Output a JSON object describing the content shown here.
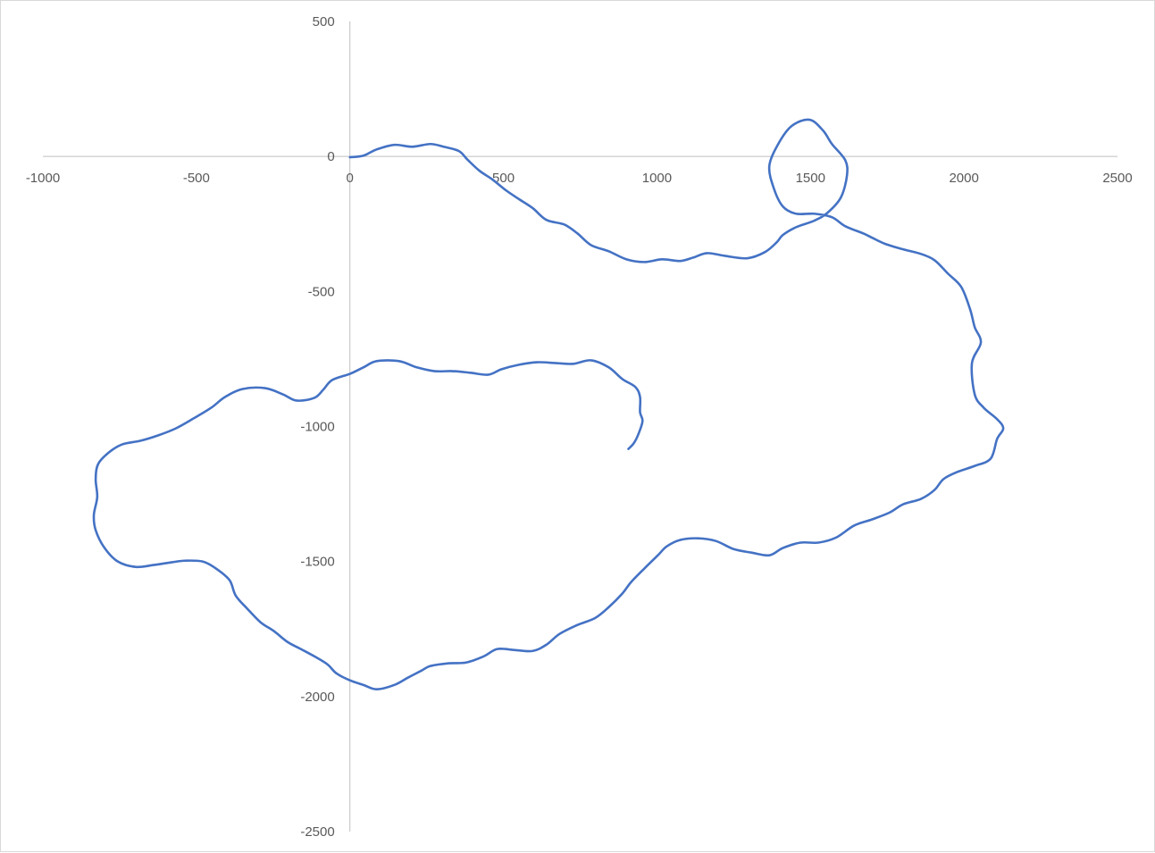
{
  "chart_data": {
    "type": "scatter",
    "mode": "smooth-line",
    "title": "",
    "xlabel": "",
    "ylabel": "",
    "xlim": [
      -1000,
      2500
    ],
    "ylim": [
      -2500,
      500
    ],
    "xticks": [
      "-1000",
      "-500",
      "0",
      "500",
      "1000",
      "1500",
      "2000",
      "2500"
    ],
    "yticks": [
      "500",
      "0",
      "-500",
      "-1000",
      "-1500",
      "-2000",
      "-2500"
    ],
    "grid": false,
    "legend": "none",
    "line_color": "#4472C4",
    "axis_color": "#bfbfbf",
    "series": [
      {
        "x": [
          0,
          44,
          87,
          145,
          203,
          262,
          305,
          355,
          384,
          422,
          465,
          509,
          552,
          596,
          640,
          698,
          741,
          785,
          843,
          901,
          959,
          1017,
          1076,
          1119,
          1163,
          1221,
          1294,
          1352,
          1390,
          1410,
          1453,
          1512,
          1555,
          1599,
          1619,
          1613,
          1570,
          1541,
          1497,
          1439,
          1395,
          1366,
          1381,
          1410,
          1453,
          1512,
          1570,
          1613,
          1672,
          1701,
          1744,
          1802,
          1860,
          1904,
          1948,
          1991,
          2020,
          2035,
          2055,
          2026,
          2035,
          2064,
          2108,
          2128,
          2108,
          2087,
          2035,
          1977,
          1933,
          1904,
          1860,
          1802,
          1759,
          1701,
          1642,
          1584,
          1526,
          1468,
          1410,
          1366,
          1308,
          1250,
          1192,
          1134,
          1076,
          1032,
          1003,
          959,
          916,
          887,
          843,
          799,
          741,
          683,
          640,
          596,
          538,
          480,
          436,
          378,
          320,
          262,
          233,
          189,
          145,
          87,
          44,
          0,
          -44,
          -73,
          -116,
          -160,
          -203,
          -247,
          -291,
          -334,
          -372,
          -392,
          -436,
          -480,
          -538,
          -581,
          -640,
          -698,
          -756,
          -799,
          -828,
          -834,
          -823,
          -828,
          -820,
          -785,
          -741,
          -683,
          -625,
          -567,
          -509,
          -451,
          -407,
          -349,
          -276,
          -218,
          -174,
          -116,
          -87,
          -58,
          0,
          44,
          87,
          160,
          218,
          276,
          334,
          392,
          451,
          494,
          552,
          610,
          669,
          727,
          785,
          843,
          887,
          930,
          945,
          945,
          953,
          939,
          924,
          907
        ],
        "y": [
          -3,
          3,
          26,
          43,
          36,
          46,
          36,
          20,
          -13,
          -53,
          -86,
          -126,
          -159,
          -192,
          -235,
          -252,
          -285,
          -328,
          -351,
          -381,
          -391,
          -381,
          -387,
          -374,
          -358,
          -368,
          -377,
          -354,
          -318,
          -291,
          -262,
          -238,
          -209,
          -152,
          -70,
          -13,
          46,
          96,
          136,
          113,
          46,
          -36,
          -119,
          -185,
          -212,
          -212,
          -225,
          -258,
          -285,
          -301,
          -324,
          -344,
          -361,
          -384,
          -434,
          -483,
          -566,
          -632,
          -689,
          -765,
          -881,
          -930,
          -973,
          -1007,
          -1046,
          -1119,
          -1146,
          -1169,
          -1195,
          -1235,
          -1268,
          -1288,
          -1318,
          -1344,
          -1367,
          -1411,
          -1430,
          -1430,
          -1450,
          -1477,
          -1467,
          -1454,
          -1424,
          -1414,
          -1420,
          -1444,
          -1477,
          -1526,
          -1576,
          -1619,
          -1669,
          -1709,
          -1735,
          -1768,
          -1808,
          -1831,
          -1828,
          -1824,
          -1851,
          -1874,
          -1877,
          -1887,
          -1904,
          -1930,
          -1957,
          -1973,
          -1957,
          -1940,
          -1914,
          -1881,
          -1851,
          -1824,
          -1798,
          -1758,
          -1725,
          -1675,
          -1626,
          -1569,
          -1526,
          -1500,
          -1497,
          -1503,
          -1513,
          -1520,
          -1500,
          -1450,
          -1384,
          -1328,
          -1261,
          -1195,
          -1139,
          -1096,
          -1066,
          -1053,
          -1033,
          -1007,
          -970,
          -930,
          -891,
          -861,
          -858,
          -881,
          -904,
          -894,
          -864,
          -828,
          -805,
          -781,
          -758,
          -758,
          -781,
          -795,
          -795,
          -801,
          -808,
          -788,
          -771,
          -762,
          -765,
          -768,
          -755,
          -781,
          -824,
          -854,
          -891,
          -947,
          -980,
          -1030,
          -1063,
          -1083
        ]
      }
    ]
  }
}
